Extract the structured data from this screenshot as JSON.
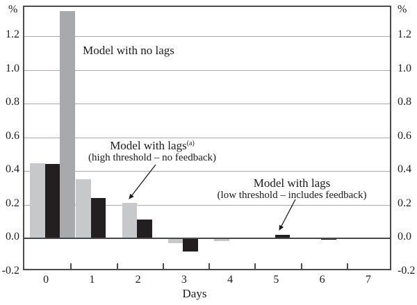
{
  "chart_data": {
    "type": "bar",
    "title": "",
    "xlabel": "Days",
    "ylabel": "%",
    "categories": [
      "0",
      "1",
      "2",
      "3",
      "4",
      "5",
      "6",
      "7"
    ],
    "ylim": [
      -0.2,
      1.37
    ],
    "y_ticks": [
      -0.2,
      0.0,
      0.2,
      0.4,
      0.6,
      0.8,
      1.0,
      1.2
    ],
    "y_tick_labels": [
      "-0.2",
      "0.0",
      "0.2",
      "0.4",
      "0.6",
      "0.8",
      "1.0",
      "1.2"
    ],
    "grid": "horizontal",
    "legend_position": "annotations-in-plot",
    "series": [
      {
        "name": "Model with lags (high threshold – no feedback)",
        "color": "#c7c8ca",
        "values": [
          0.445,
          0.35,
          0.21,
          -0.03,
          -0.015,
          0,
          0,
          0
        ]
      },
      {
        "name": "Model with lags (low threshold – includes feedback)",
        "color": "#231f20",
        "values": [
          0.44,
          0.24,
          0.11,
          -0.08,
          0,
          0.02,
          -0.01,
          0
        ]
      },
      {
        "name": "Model with no lags",
        "color": "#a7a9ac",
        "values": [
          1.35,
          0,
          0,
          0,
          0,
          0,
          0,
          0
        ]
      }
    ],
    "annotations": [
      {
        "text": "Model with no lags"
      },
      {
        "line1": "Model with lags",
        "sup": "(a)",
        "line2": "(high threshold – no feedback)"
      },
      {
        "line1": "Model with lags",
        "line2": "(low threshold – includes feedback)"
      }
    ]
  },
  "colors": {
    "grid": "#a8a8a8",
    "zero_line": "#474747",
    "frame": "#4c4c4c",
    "arrow": "#1a1a1a"
  }
}
